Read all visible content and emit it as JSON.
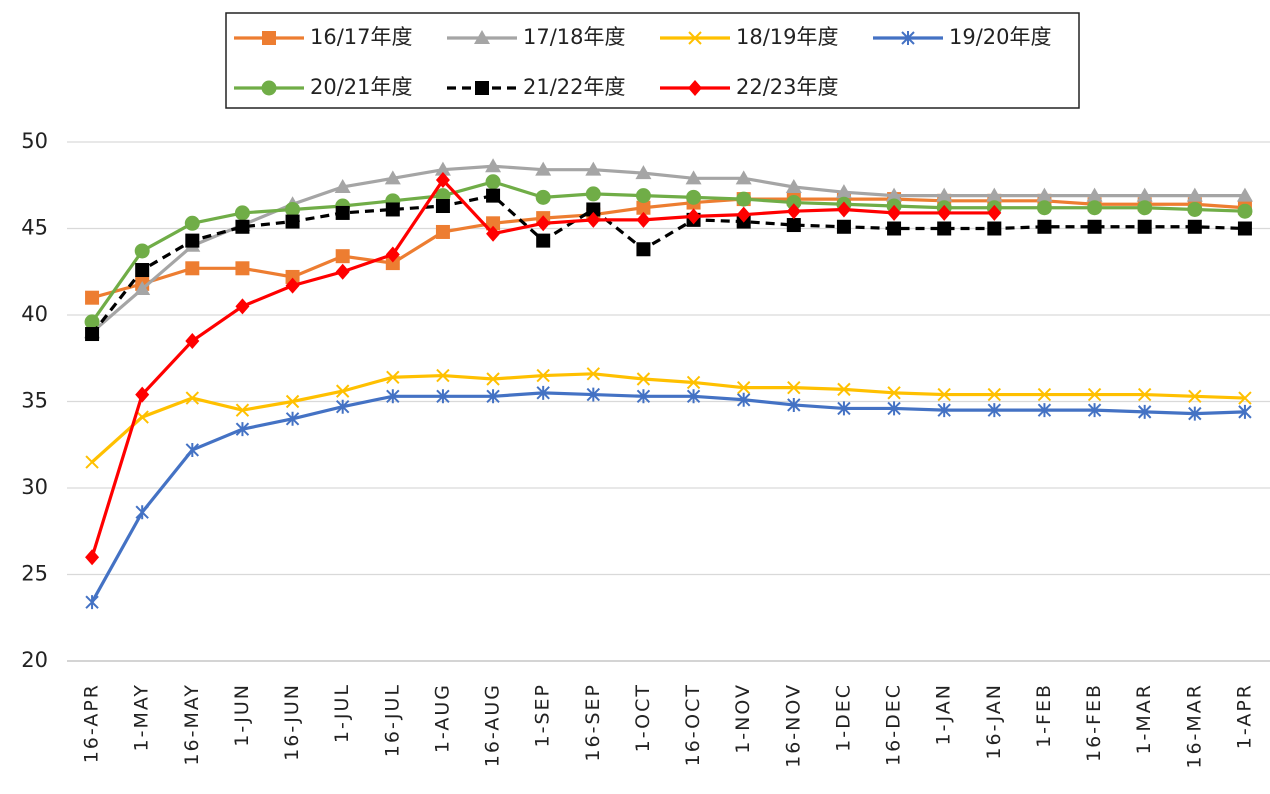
{
  "chart_data": {
    "type": "line",
    "categories": [
      "16-APR",
      "1-MAY",
      "16-MAY",
      "1-JUN",
      "16-JUN",
      "1-JUL",
      "16-JUL",
      "1-AUG",
      "16-AUG",
      "1-SEP",
      "16-SEP",
      "1-OCT",
      "16-OCT",
      "1-NOV",
      "16-NOV",
      "1-DEC",
      "16-DEC",
      "1-JAN",
      "16-JAN",
      "1-FEB",
      "16-FEB",
      "1-MAR",
      "16-MAR",
      "1-APR"
    ],
    "ylim": [
      20,
      50
    ],
    "yticks": [
      20,
      25,
      30,
      35,
      40,
      45,
      50
    ],
    "grid": true,
    "series": [
      {
        "name": "16/17年度",
        "color": "#ed7d31",
        "marker": "square",
        "dash": false,
        "values": [
          41.0,
          41.8,
          42.7,
          42.7,
          42.2,
          43.4,
          43.0,
          44.8,
          45.3,
          45.6,
          45.8,
          46.2,
          46.5,
          46.7,
          46.7,
          46.7,
          46.7,
          46.6,
          46.6,
          46.6,
          46.4,
          46.4,
          46.4,
          46.2
        ]
      },
      {
        "name": "17/18年度",
        "color": "#a5a5a5",
        "marker": "triangle",
        "dash": false,
        "values": [
          39.0,
          41.5,
          44.0,
          45.2,
          46.4,
          47.4,
          47.9,
          48.4,
          48.6,
          48.4,
          48.4,
          48.2,
          47.9,
          47.9,
          47.4,
          47.1,
          46.9,
          46.9,
          46.9,
          46.9,
          46.9,
          46.9,
          46.9,
          46.9
        ]
      },
      {
        "name": "18/19年度",
        "color": "#ffc000",
        "marker": "x",
        "dash": false,
        "values": [
          31.5,
          34.1,
          35.2,
          34.5,
          35.0,
          35.6,
          36.4,
          36.5,
          36.3,
          36.5,
          36.6,
          36.3,
          36.1,
          35.8,
          35.8,
          35.7,
          35.5,
          35.4,
          35.4,
          35.4,
          35.4,
          35.4,
          35.3,
          35.2
        ]
      },
      {
        "name": "19/20年度",
        "color": "#4472c4",
        "marker": "star",
        "dash": false,
        "values": [
          23.4,
          28.6,
          32.2,
          33.4,
          34.0,
          34.7,
          35.3,
          35.3,
          35.3,
          35.5,
          35.4,
          35.3,
          35.3,
          35.1,
          34.8,
          34.6,
          34.6,
          34.5,
          34.5,
          34.5,
          34.5,
          34.4,
          34.3,
          34.4
        ]
      },
      {
        "name": "20/21年度",
        "color": "#70ad47",
        "marker": "circle",
        "dash": false,
        "values": [
          39.6,
          43.7,
          45.3,
          45.9,
          46.1,
          46.3,
          46.6,
          46.9,
          47.7,
          46.8,
          47.0,
          46.9,
          46.8,
          46.7,
          46.5,
          46.4,
          46.3,
          46.2,
          46.2,
          46.2,
          46.2,
          46.2,
          46.1,
          46.0
        ]
      },
      {
        "name": "21/22年度",
        "color": "#000000",
        "marker": "square",
        "dash": true,
        "values": [
          38.9,
          42.6,
          44.3,
          45.1,
          45.4,
          45.9,
          46.1,
          46.3,
          46.9,
          44.3,
          46.1,
          43.8,
          45.5,
          45.4,
          45.2,
          45.1,
          45.0,
          45.0,
          45.0,
          45.1,
          45.1,
          45.1,
          45.1,
          45.0
        ]
      },
      {
        "name": "22/23年度",
        "color": "#ff0000",
        "marker": "diamond",
        "dash": false,
        "values": [
          26.0,
          35.4,
          38.5,
          40.5,
          41.7,
          42.5,
          43.5,
          47.8,
          44.7,
          45.3,
          45.5,
          45.5,
          45.7,
          45.8,
          46.0,
          46.1,
          45.9,
          45.9,
          45.9,
          null,
          null,
          null,
          null,
          null
        ]
      }
    ]
  }
}
